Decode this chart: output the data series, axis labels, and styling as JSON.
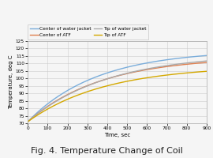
{
  "title": "Fig. 4. Temperature Change of Coil",
  "xlabel": "Time, sec",
  "ylabel": "Temperature, deg C",
  "xlim": [
    0,
    900
  ],
  "ylim": [
    70,
    125
  ],
  "yticks": [
    70,
    75,
    80,
    85,
    90,
    95,
    100,
    105,
    110,
    115,
    120,
    125
  ],
  "xticks": [
    0,
    100,
    200,
    300,
    400,
    500,
    600,
    700,
    800,
    900
  ],
  "series": [
    {
      "label": "Center of water jacket",
      "color": "#7aaddb",
      "T0": 71.0,
      "Tmax": 119.0,
      "tau": 350
    },
    {
      "label": "Center of ATF",
      "color": "#e08050",
      "T0": 71.0,
      "Tmax": 114.5,
      "tau": 370
    },
    {
      "label": "Tip of water jacket",
      "color": "#aaaaaa",
      "T0": 71.0,
      "Tmax": 116.5,
      "tau": 400
    },
    {
      "label": "Tip of ATF",
      "color": "#d4a800",
      "T0": 71.0,
      "Tmax": 108.5,
      "tau": 390
    }
  ],
  "background_color": "#f5f5f5",
  "plot_bg_color": "#f5f5f5",
  "grid_color": "#cccccc",
  "legend_fontsize": 4.2,
  "axis_fontsize": 5.0,
  "tick_fontsize": 4.2,
  "title_fontsize": 8.0,
  "linewidth": 1.0
}
